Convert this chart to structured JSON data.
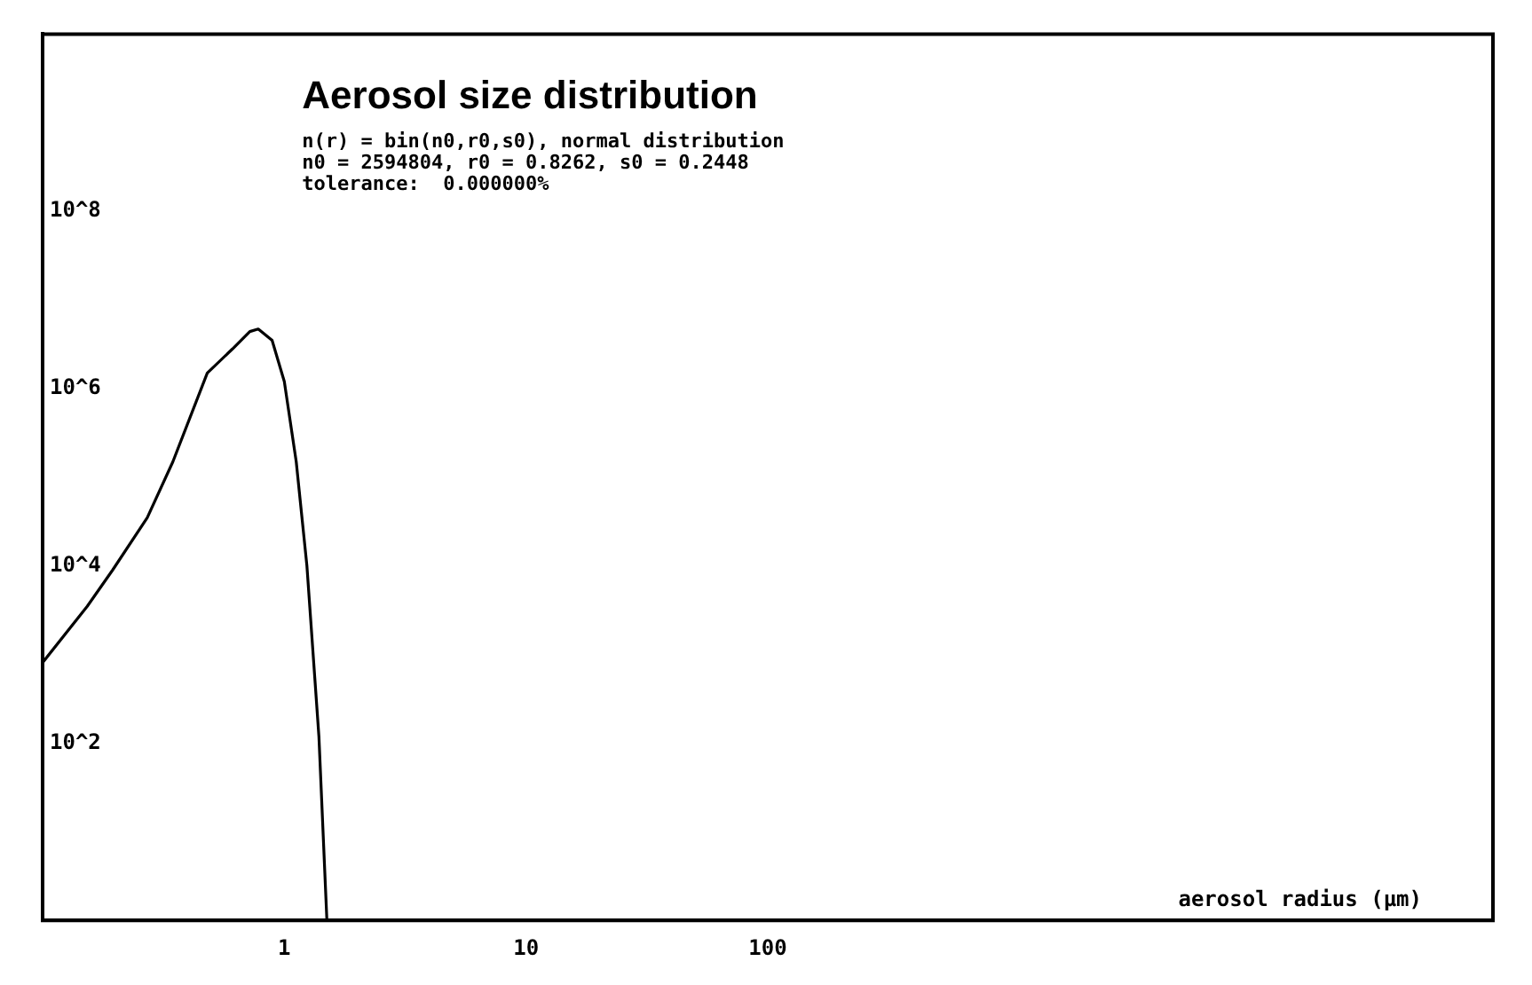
{
  "chart_data": {
    "type": "line",
    "title": "Aerosol size distribution",
    "subtitle": "n(r) = bin(n0,r0,s0), normal distribution",
    "annotations": [
      "n0 = 2594804, r0 = 0.8262, s0 = 0.2448",
      "tolerance:  0.000000%"
    ],
    "xlabel": "aerosol radius (µm)",
    "x": [
      0.1,
      0.153,
      0.195,
      0.271,
      0.346,
      0.48,
      0.61,
      0.72,
      0.78,
      0.89,
      1.0,
      1.12,
      1.24,
      1.39,
      1.5
    ],
    "series": [
      {
        "color": "#000000",
        "values": [
          810,
          3500,
          9000,
          35000,
          150000,
          1500000,
          2800000,
          4400000,
          4700000,
          3500000,
          1200000,
          150000,
          10000,
          120,
          1
        ]
      }
    ],
    "log": "xy",
    "xlim": [
      0.1,
      100000
    ],
    "xticks": [
      1,
      10,
      100
    ],
    "ylim": [
      1,
      10000000000
    ],
    "yticks": [
      {
        "value": 100,
        "label": "10^2"
      },
      {
        "value": 10000,
        "label": "10^4"
      },
      {
        "value": 1000000,
        "label": "10^6"
      },
      {
        "value": 100000000,
        "label": "10^8"
      }
    ],
    "grid": false,
    "legend": false,
    "marker": "none",
    "line_style": "solid"
  }
}
